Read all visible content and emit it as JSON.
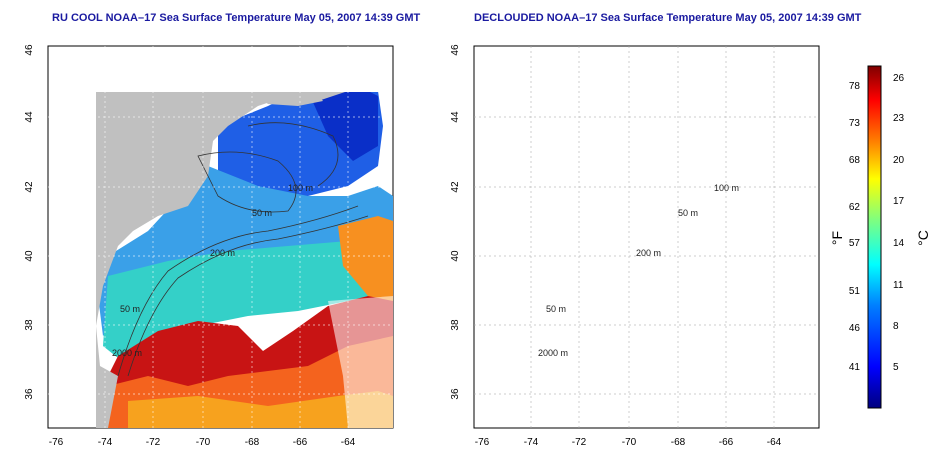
{
  "panels": [
    {
      "title": "RU COOL NOAA–17 Sea Surface Temperature May 05, 2007 14:39 GMT",
      "x_ticks": [
        "-76",
        "-74",
        "-72",
        "-70",
        "-68",
        "-66",
        "-64"
      ],
      "y_ticks": [
        "36",
        "38",
        "40",
        "42",
        "44",
        "46"
      ],
      "contour_labels": [
        "100 m",
        "50 m",
        "200 m",
        "50 m",
        "2000 m"
      ]
    },
    {
      "title": "DECLOUDED NOAA–17 Sea Surface Temperature May 05, 2007 14:39 GMT",
      "x_ticks": [
        "-76",
        "-74",
        "-72",
        "-70",
        "-68",
        "-66",
        "-64"
      ],
      "y_ticks": [
        "36",
        "38",
        "40",
        "42",
        "44",
        "46"
      ],
      "contour_labels": [
        "100 m",
        "50 m",
        "200 m",
        "50 m",
        "2000 m"
      ]
    }
  ],
  "colorbar": {
    "f_label": "°F",
    "c_label": "°C",
    "f_ticks": [
      "78",
      "73",
      "68",
      "62",
      "57",
      "51",
      "46",
      "41"
    ],
    "c_ticks": [
      "26",
      "23",
      "20",
      "17",
      "14",
      "11",
      "8",
      "5"
    ],
    "colors": [
      "#00007f",
      "#0000ff",
      "#007fff",
      "#00ffff",
      "#7fff7f",
      "#ffff00",
      "#ff7f00",
      "#ff0000",
      "#7f0000"
    ]
  },
  "land_color": "#c0c0c0"
}
